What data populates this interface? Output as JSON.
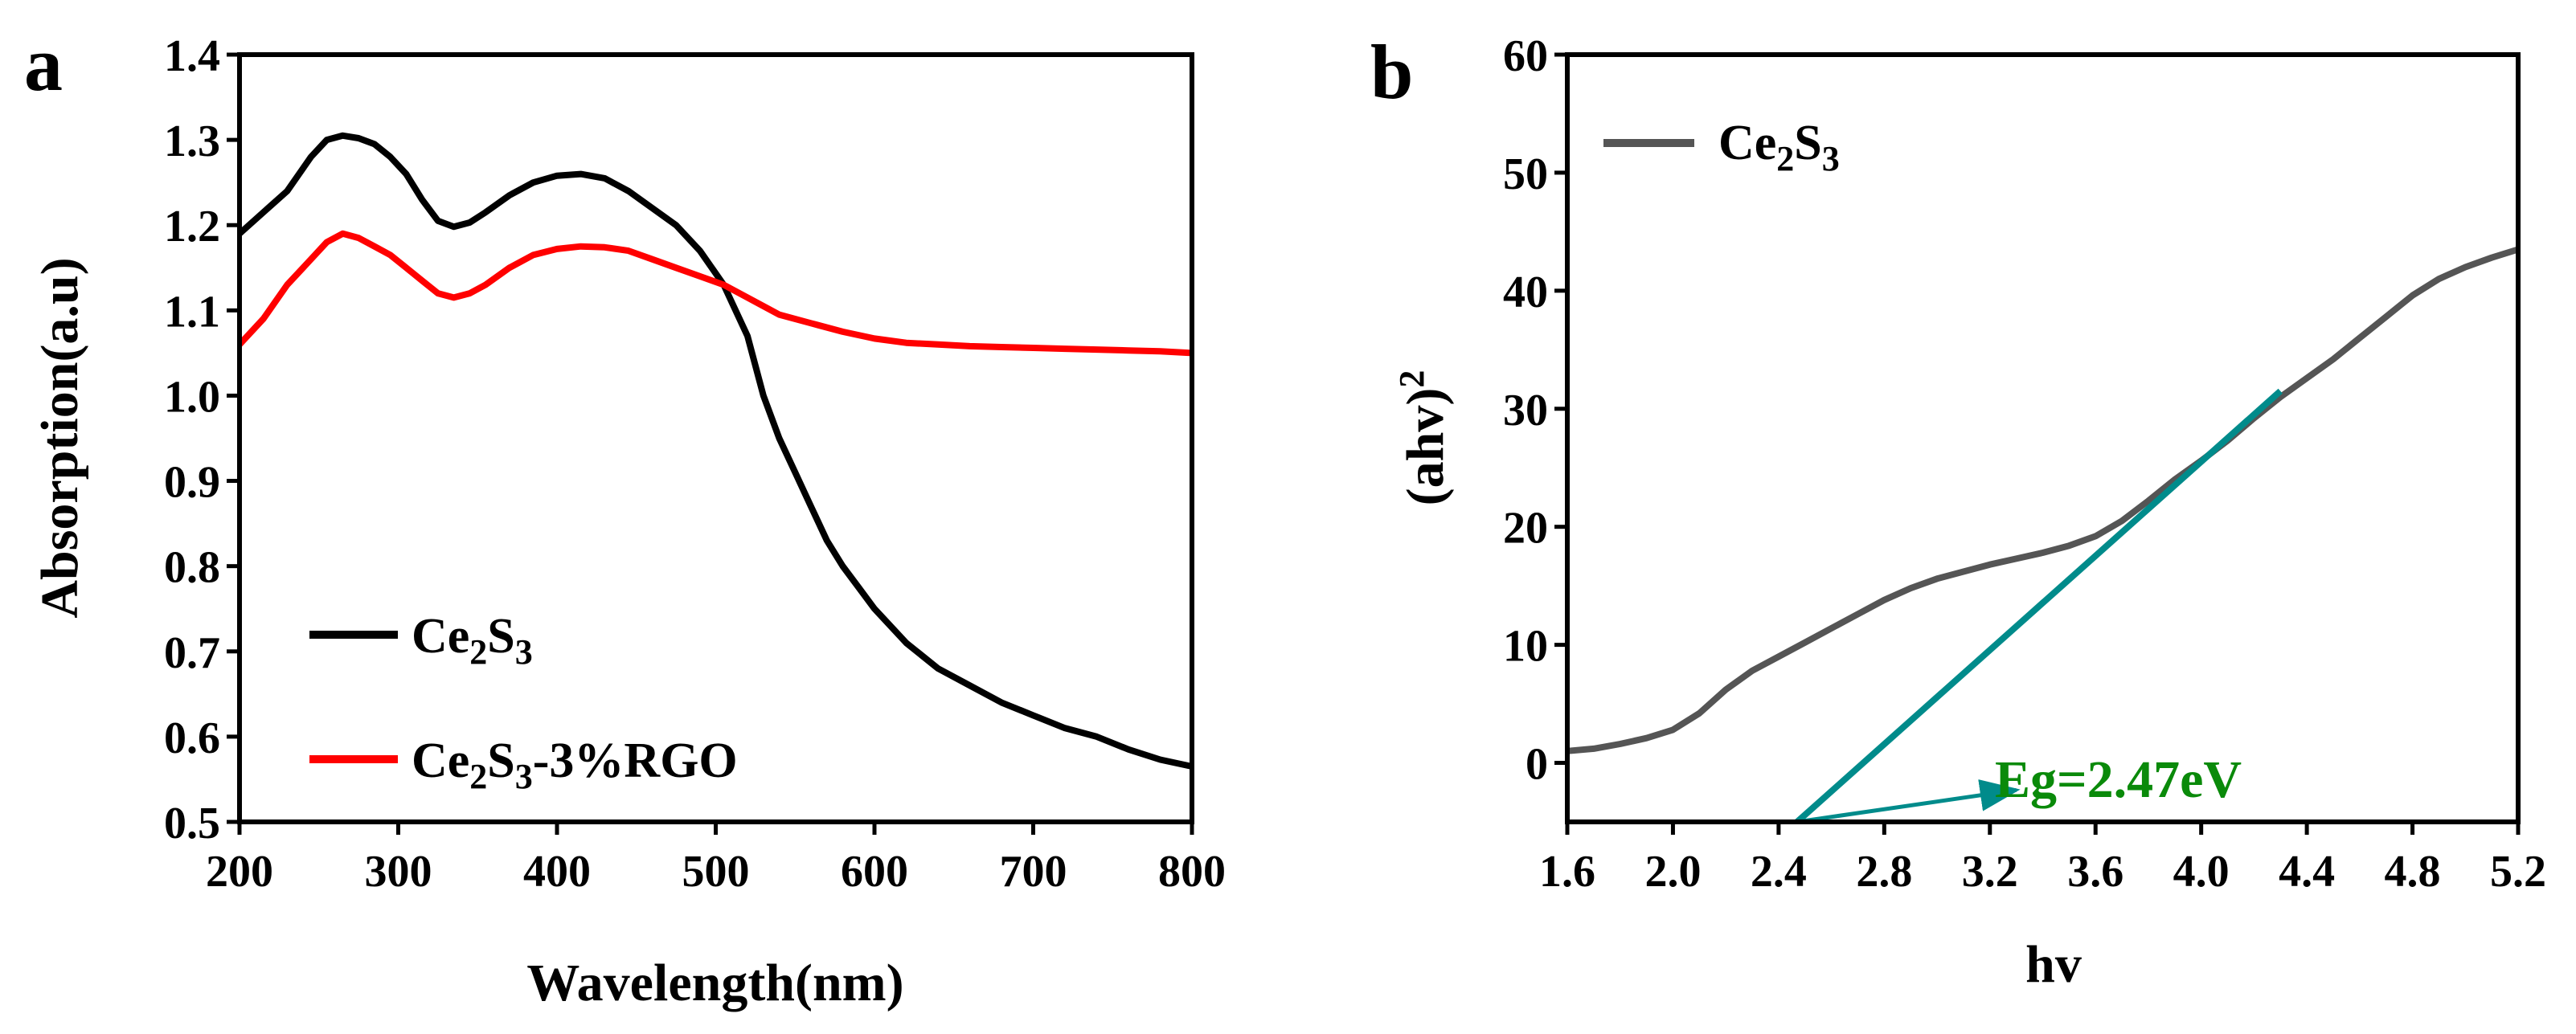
{
  "chart_data": [
    {
      "panel_label": "a",
      "type": "line",
      "xlabel": "Wavelength(nm)",
      "ylabel": "Absorption(a.u)",
      "xlim": [
        200,
        800
      ],
      "ylim": [
        0.5,
        1.4
      ],
      "xticks": [
        200,
        300,
        400,
        500,
        600,
        700,
        800
      ],
      "yticks": [
        0.5,
        0.6,
        0.7,
        0.8,
        0.9,
        1.0,
        1.1,
        1.2,
        1.3,
        1.4
      ],
      "legend_position": "bottom-left",
      "series": [
        {
          "name": "Ce2S3",
          "legend_base": "Ce",
          "legend_sub1": "2",
          "legend_mid": "S",
          "legend_sub2": "3",
          "legend_suffix": "",
          "color": "#000000",
          "x": [
            200,
            215,
            230,
            245,
            255,
            265,
            275,
            285,
            295,
            305,
            315,
            325,
            335,
            345,
            355,
            370,
            385,
            400,
            415,
            430,
            445,
            460,
            475,
            490,
            505,
            520,
            530,
            540,
            550,
            560,
            570,
            580,
            590,
            600,
            620,
            640,
            660,
            680,
            700,
            720,
            740,
            760,
            780,
            800
          ],
          "y": [
            1.19,
            1.215,
            1.24,
            1.28,
            1.3,
            1.305,
            1.302,
            1.295,
            1.28,
            1.26,
            1.23,
            1.205,
            1.198,
            1.203,
            1.215,
            1.235,
            1.25,
            1.258,
            1.26,
            1.255,
            1.24,
            1.22,
            1.2,
            1.17,
            1.13,
            1.07,
            1.0,
            0.95,
            0.91,
            0.87,
            0.83,
            0.8,
            0.775,
            0.75,
            0.71,
            0.68,
            0.66,
            0.64,
            0.625,
            0.61,
            0.6,
            0.585,
            0.573,
            0.565
          ]
        },
        {
          "name": "Ce2S3-3%RGO",
          "legend_base": "Ce",
          "legend_sub1": "2",
          "legend_mid": "S",
          "legend_sub2": "3",
          "legend_suffix": "-3%RGO",
          "color": "#ff0000",
          "x": [
            200,
            215,
            230,
            245,
            255,
            265,
            275,
            285,
            295,
            305,
            315,
            325,
            335,
            345,
            355,
            370,
            385,
            400,
            415,
            430,
            445,
            460,
            475,
            490,
            505,
            520,
            540,
            560,
            580,
            600,
            620,
            640,
            660,
            680,
            700,
            720,
            740,
            760,
            780,
            800
          ],
          "y": [
            1.06,
            1.09,
            1.13,
            1.16,
            1.18,
            1.19,
            1.185,
            1.175,
            1.165,
            1.15,
            1.135,
            1.12,
            1.115,
            1.12,
            1.13,
            1.15,
            1.165,
            1.172,
            1.175,
            1.174,
            1.17,
            1.16,
            1.15,
            1.14,
            1.13,
            1.115,
            1.095,
            1.085,
            1.075,
            1.067,
            1.062,
            1.06,
            1.058,
            1.057,
            1.056,
            1.055,
            1.054,
            1.053,
            1.052,
            1.05
          ]
        }
      ]
    },
    {
      "panel_label": "b",
      "type": "line",
      "xlabel": "hv",
      "ylabel_base": "(ahv)",
      "ylabel_sup": "2",
      "xlim": [
        1.6,
        5.2
      ],
      "ylim": [
        -5,
        60
      ],
      "xticks": [
        "1.6",
        "2.0",
        "2.4",
        "2.8",
        "3.2",
        "3.6",
        "4.0",
        "4.4",
        "4.8",
        "5.2"
      ],
      "yticks": [
        0,
        10,
        20,
        30,
        40,
        50,
        60
      ],
      "legend_position": "top-left",
      "series": [
        {
          "name": "Ce2S3",
          "legend_base": "Ce",
          "legend_sub1": "2",
          "legend_mid": "S",
          "legend_sub2": "3",
          "color": "#555555",
          "x": [
            1.6,
            1.7,
            1.8,
            1.9,
            2.0,
            2.1,
            2.2,
            2.3,
            2.4,
            2.5,
            2.6,
            2.7,
            2.8,
            2.9,
            3.0,
            3.1,
            3.2,
            3.3,
            3.4,
            3.5,
            3.6,
            3.7,
            3.8,
            3.9,
            4.0,
            4.1,
            4.2,
            4.3,
            4.4,
            4.5,
            4.6,
            4.7,
            4.8,
            4.9,
            5.0,
            5.1,
            5.2
          ],
          "y": [
            1.0,
            1.2,
            1.6,
            2.1,
            2.8,
            4.2,
            6.2,
            7.8,
            9.0,
            10.2,
            11.4,
            12.6,
            13.8,
            14.8,
            15.6,
            16.2,
            16.8,
            17.3,
            17.8,
            18.4,
            19.2,
            20.5,
            22.2,
            24.0,
            25.6,
            27.3,
            29.2,
            31.0,
            32.6,
            34.2,
            36.0,
            37.8,
            39.6,
            41.0,
            42.0,
            42.8,
            43.5
          ]
        }
      ],
      "tangent_line": {
        "color": "#008b8b",
        "x": [
          2.47,
          4.3
        ],
        "y": [
          -5,
          31.5
        ]
      },
      "annotation": {
        "text": "Eg=2.47eV",
        "color": "#0a8a0a",
        "arrow_color": "#008b8b",
        "arrow_from": [
          2.47,
          -5
        ],
        "arrow_to": [
          3.3,
          -2.3
        ]
      }
    }
  ]
}
